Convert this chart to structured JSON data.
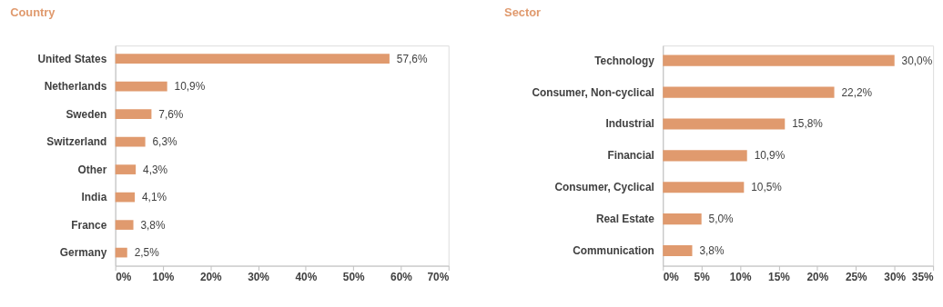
{
  "chart_data": [
    {
      "type": "bar",
      "orientation": "horizontal",
      "title": "Country",
      "categories": [
        "United States",
        "Netherlands",
        "Sweden",
        "Switzerland",
        "Other",
        "India",
        "France",
        "Germany"
      ],
      "values": [
        57.6,
        10.9,
        7.6,
        6.3,
        4.3,
        4.1,
        3.8,
        2.5
      ],
      "value_labels": [
        "57,6%",
        "10,9%",
        "7,6%",
        "6,3%",
        "4,3%",
        "4,1%",
        "3,8%",
        "2,5%"
      ],
      "color": "#e09a6e",
      "xlim": [
        0,
        70
      ],
      "xticks": [
        {
          "value": 0,
          "label": "0%"
        },
        {
          "value": 10,
          "label": "10%"
        },
        {
          "value": 20,
          "label": "20%"
        },
        {
          "value": 30,
          "label": "30%"
        },
        {
          "value": 40,
          "label": "40%"
        },
        {
          "value": 50,
          "label": "50%"
        },
        {
          "value": 60,
          "label": "60%"
        },
        {
          "value": 70,
          "label": "70%"
        }
      ],
      "grid": false
    },
    {
      "type": "bar",
      "orientation": "horizontal",
      "title": "Sector",
      "categories": [
        "Technology",
        "Consumer, Non-cyclical",
        "Industrial",
        "Financial",
        "Consumer, Cyclical",
        "Real Estate",
        "Communication"
      ],
      "values": [
        30.0,
        22.2,
        15.8,
        10.9,
        10.5,
        5.0,
        3.8
      ],
      "value_labels": [
        "30,0%",
        "22,2%",
        "15,8%",
        "10,9%",
        "10,5%",
        "5,0%",
        "3,8%"
      ],
      "color": "#e09a6e",
      "xlim": [
        0,
        35
      ],
      "xticks": [
        {
          "value": 0,
          "label": "0%"
        },
        {
          "value": 5,
          "label": "5%"
        },
        {
          "value": 10,
          "label": "10%"
        },
        {
          "value": 15,
          "label": "15%"
        },
        {
          "value": 20,
          "label": "20%"
        },
        {
          "value": 25,
          "label": "25%"
        },
        {
          "value": 30,
          "label": "30%"
        },
        {
          "value": 35,
          "label": "35%"
        }
      ],
      "grid": false
    }
  ]
}
